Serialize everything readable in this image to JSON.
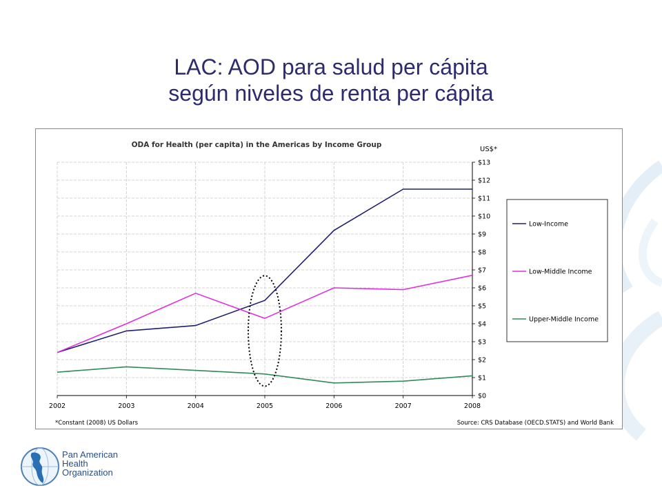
{
  "slide": {
    "title_line1": "LAC: AOD para salud per cápita",
    "title_line2": "según niveles de renta per cápita"
  },
  "organization": {
    "line1": "Pan American",
    "line2": "Health",
    "line3": "Organization"
  },
  "chart_data": {
    "type": "line",
    "title": "ODA for Health (per capita) in the Americas by Income Group",
    "ylabel": "US$*",
    "x": [
      "2002",
      "2003",
      "2004",
      "2005",
      "2006",
      "2007",
      "2008"
    ],
    "ylim": [
      0,
      13
    ],
    "yticks": [
      "$0",
      "$1",
      "$2",
      "$3",
      "$4",
      "$5",
      "$6",
      "$7",
      "$8",
      "$9",
      "$10",
      "$11",
      "$12",
      "$13"
    ],
    "y_axis_side": "right",
    "grid": true,
    "legend_position": "right",
    "series": [
      {
        "name": "Low-Income",
        "color": "#1f1f6e",
        "values": [
          2.4,
          3.6,
          3.9,
          5.3,
          9.2,
          11.5,
          11.5
        ]
      },
      {
        "name": "Low-Middle Income",
        "color": "#e02ee0",
        "values": [
          2.4,
          4.0,
          5.7,
          4.3,
          6.0,
          5.9,
          6.7
        ]
      },
      {
        "name": "Upper-Middle Income",
        "color": "#2e8b57",
        "values": [
          1.3,
          1.6,
          1.4,
          1.2,
          0.7,
          0.8,
          1.1
        ]
      }
    ],
    "highlight": {
      "x": "2005",
      "shape": "dotted-ellipse"
    },
    "footnote": "*Constant (2008) US Dollars",
    "source": "Source: CRS Database (OECD.STATS) and World Bank"
  }
}
